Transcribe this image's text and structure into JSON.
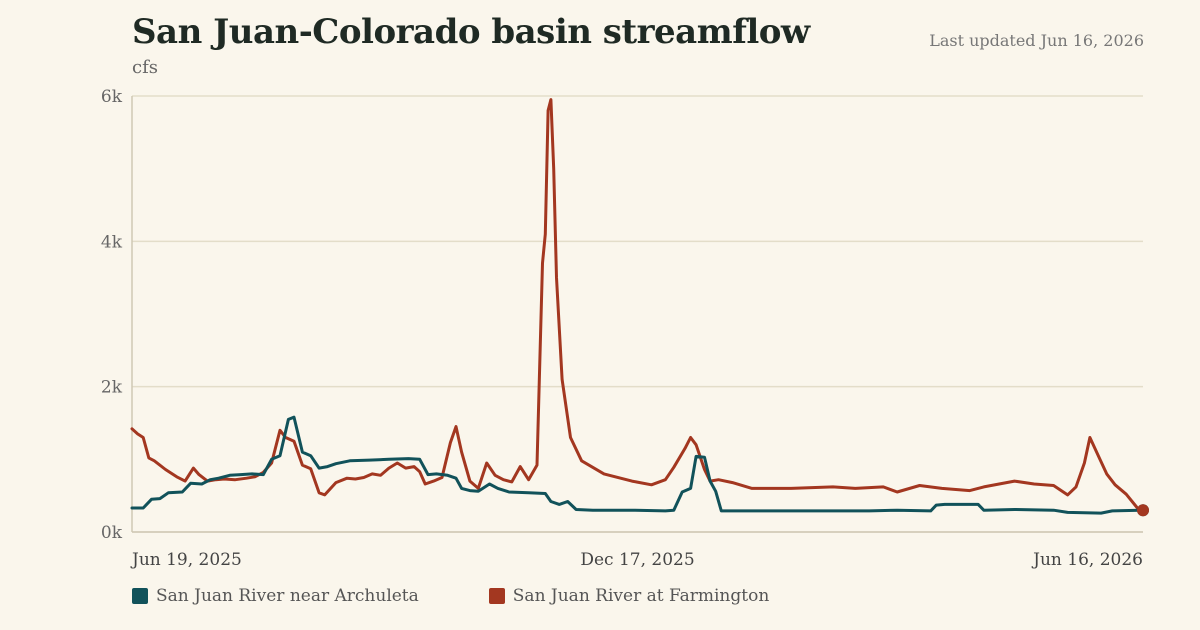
{
  "header": {
    "title": "San Juan-Colorado basin streamflow",
    "unit": "cfs",
    "updated": "Last updated Jun 16, 2026"
  },
  "colors": {
    "series_1": "#11525a",
    "series_2": "#a33720",
    "grid": "#e3ddc9",
    "axis": "#cfc8b4"
  },
  "chart_data": {
    "type": "line",
    "ylim": [
      0,
      6000
    ],
    "y_ticks": [
      {
        "value": 0,
        "label": "0k"
      },
      {
        "value": 2000,
        "label": "2k"
      },
      {
        "value": 4000,
        "label": "4k"
      },
      {
        "value": 6000,
        "label": "6k"
      }
    ],
    "xlim": [
      "2025-06-19",
      "2026-06-16"
    ],
    "x_ticks": [
      {
        "date": "2025-06-19",
        "label": "Jun 19, 2025"
      },
      {
        "date": "2025-12-17",
        "label": "Dec 17, 2025"
      },
      {
        "date": "2026-06-16",
        "label": "Jun 16, 2026"
      }
    ],
    "grid": "horizontal",
    "legend": "bottom-left",
    "series": [
      {
        "name": "San Juan River near Archuleta",
        "points": [
          [
            "2025-06-19",
            330
          ],
          [
            "2025-06-23",
            330
          ],
          [
            "2025-06-26",
            450
          ],
          [
            "2025-06-29",
            460
          ],
          [
            "2025-07-02",
            540
          ],
          [
            "2025-07-07",
            550
          ],
          [
            "2025-07-10",
            670
          ],
          [
            "2025-07-14",
            660
          ],
          [
            "2025-07-17",
            720
          ],
          [
            "2025-07-20",
            740
          ],
          [
            "2025-07-24",
            780
          ],
          [
            "2025-07-28",
            790
          ],
          [
            "2025-08-01",
            800
          ],
          [
            "2025-08-05",
            790
          ],
          [
            "2025-08-08",
            1000
          ],
          [
            "2025-08-11",
            1050
          ],
          [
            "2025-08-14",
            1550
          ],
          [
            "2025-08-16",
            1580
          ],
          [
            "2025-08-19",
            1100
          ],
          [
            "2025-08-22",
            1050
          ],
          [
            "2025-08-25",
            880
          ],
          [
            "2025-08-28",
            900
          ],
          [
            "2025-08-31",
            940
          ],
          [
            "2025-09-05",
            980
          ],
          [
            "2025-09-12",
            990
          ],
          [
            "2025-09-19",
            1000
          ],
          [
            "2025-09-26",
            1010
          ],
          [
            "2025-09-30",
            1000
          ],
          [
            "2025-10-03",
            790
          ],
          [
            "2025-10-06",
            800
          ],
          [
            "2025-10-10",
            780
          ],
          [
            "2025-10-13",
            740
          ],
          [
            "2025-10-15",
            600
          ],
          [
            "2025-10-18",
            570
          ],
          [
            "2025-10-21",
            560
          ],
          [
            "2025-10-25",
            660
          ],
          [
            "2025-10-28",
            600
          ],
          [
            "2025-11-01",
            550
          ],
          [
            "2025-11-08",
            540
          ],
          [
            "2025-11-14",
            530
          ],
          [
            "2025-11-16",
            420
          ],
          [
            "2025-11-19",
            380
          ],
          [
            "2025-11-22",
            420
          ],
          [
            "2025-11-25",
            310
          ],
          [
            "2025-12-01",
            300
          ],
          [
            "2025-12-15",
            300
          ],
          [
            "2025-12-27",
            290
          ],
          [
            "2025-12-30",
            300
          ],
          [
            "2026-01-02",
            550
          ],
          [
            "2026-01-05",
            600
          ],
          [
            "2026-01-07",
            1040
          ],
          [
            "2026-01-10",
            1030
          ],
          [
            "2026-01-12",
            700
          ],
          [
            "2026-01-14",
            560
          ],
          [
            "2026-01-16",
            290
          ],
          [
            "2026-01-20",
            290
          ],
          [
            "2026-02-10",
            290
          ],
          [
            "2026-03-10",
            290
          ],
          [
            "2026-03-20",
            300
          ],
          [
            "2026-04-01",
            290
          ],
          [
            "2026-04-03",
            370
          ],
          [
            "2026-04-06",
            380
          ],
          [
            "2026-04-18",
            380
          ],
          [
            "2026-04-20",
            300
          ],
          [
            "2026-05-01",
            310
          ],
          [
            "2026-05-15",
            300
          ],
          [
            "2026-05-20",
            270
          ],
          [
            "2026-06-01",
            260
          ],
          [
            "2026-06-05",
            290
          ],
          [
            "2026-06-15",
            300
          ],
          [
            "2026-06-16",
            300
          ]
        ]
      },
      {
        "name": "San Juan River at Farmington",
        "points": [
          [
            "2025-06-19",
            1420
          ],
          [
            "2025-06-21",
            1350
          ],
          [
            "2025-06-23",
            1300
          ],
          [
            "2025-06-25",
            1020
          ],
          [
            "2025-06-27",
            980
          ],
          [
            "2025-07-01",
            860
          ],
          [
            "2025-07-05",
            760
          ],
          [
            "2025-07-08",
            700
          ],
          [
            "2025-07-11",
            880
          ],
          [
            "2025-07-13",
            790
          ],
          [
            "2025-07-16",
            700
          ],
          [
            "2025-07-19",
            720
          ],
          [
            "2025-07-22",
            730
          ],
          [
            "2025-07-26",
            720
          ],
          [
            "2025-07-30",
            740
          ],
          [
            "2025-08-02",
            760
          ],
          [
            "2025-08-05",
            820
          ],
          [
            "2025-08-08",
            950
          ],
          [
            "2025-08-11",
            1400
          ],
          [
            "2025-08-13",
            1300
          ],
          [
            "2025-08-16",
            1250
          ],
          [
            "2025-08-19",
            920
          ],
          [
            "2025-08-22",
            870
          ],
          [
            "2025-08-25",
            540
          ],
          [
            "2025-08-27",
            510
          ],
          [
            "2025-08-31",
            680
          ],
          [
            "2025-09-04",
            740
          ],
          [
            "2025-09-07",
            730
          ],
          [
            "2025-09-10",
            750
          ],
          [
            "2025-09-13",
            800
          ],
          [
            "2025-09-16",
            780
          ],
          [
            "2025-09-19",
            880
          ],
          [
            "2025-09-22",
            950
          ],
          [
            "2025-09-25",
            880
          ],
          [
            "2025-09-28",
            900
          ],
          [
            "2025-09-30",
            830
          ],
          [
            "2025-10-02",
            660
          ],
          [
            "2025-10-05",
            700
          ],
          [
            "2025-10-08",
            750
          ],
          [
            "2025-10-11",
            1230
          ],
          [
            "2025-10-13",
            1450
          ],
          [
            "2025-10-15",
            1100
          ],
          [
            "2025-10-18",
            700
          ],
          [
            "2025-10-21",
            600
          ],
          [
            "2025-10-24",
            950
          ],
          [
            "2025-10-27",
            780
          ],
          [
            "2025-10-30",
            720
          ],
          [
            "2025-11-02",
            690
          ],
          [
            "2025-11-05",
            900
          ],
          [
            "2025-11-08",
            720
          ],
          [
            "2025-11-11",
            920
          ],
          [
            "2025-11-13",
            3700
          ],
          [
            "2025-11-14",
            4100
          ],
          [
            "2025-11-15",
            5800
          ],
          [
            "2025-11-16",
            5950
          ],
          [
            "2025-11-17",
            5000
          ],
          [
            "2025-11-18",
            3500
          ],
          [
            "2025-11-20",
            2100
          ],
          [
            "2025-11-23",
            1300
          ],
          [
            "2025-11-27",
            980
          ],
          [
            "2025-12-05",
            800
          ],
          [
            "2025-12-15",
            700
          ],
          [
            "2025-12-22",
            650
          ],
          [
            "2025-12-27",
            720
          ],
          [
            "2025-12-30",
            890
          ],
          [
            "2026-01-03",
            1150
          ],
          [
            "2026-01-05",
            1300
          ],
          [
            "2026-01-07",
            1200
          ],
          [
            "2026-01-10",
            860
          ],
          [
            "2026-01-12",
            700
          ],
          [
            "2026-01-15",
            720
          ],
          [
            "2026-01-20",
            680
          ],
          [
            "2026-01-27",
            600
          ],
          [
            "2026-02-10",
            600
          ],
          [
            "2026-02-25",
            620
          ],
          [
            "2026-03-05",
            600
          ],
          [
            "2026-03-15",
            620
          ],
          [
            "2026-03-20",
            550
          ],
          [
            "2026-03-28",
            640
          ],
          [
            "2026-04-05",
            600
          ],
          [
            "2026-04-15",
            570
          ],
          [
            "2026-04-20",
            620
          ],
          [
            "2026-05-01",
            700
          ],
          [
            "2026-05-08",
            660
          ],
          [
            "2026-05-15",
            640
          ],
          [
            "2026-05-20",
            510
          ],
          [
            "2026-05-23",
            620
          ],
          [
            "2026-05-26",
            950
          ],
          [
            "2026-05-28",
            1300
          ],
          [
            "2026-05-31",
            1050
          ],
          [
            "2026-06-03",
            800
          ],
          [
            "2026-06-06",
            650
          ],
          [
            "2026-06-10",
            520
          ],
          [
            "2026-06-14",
            330
          ],
          [
            "2026-06-16",
            300
          ]
        ]
      }
    ]
  }
}
